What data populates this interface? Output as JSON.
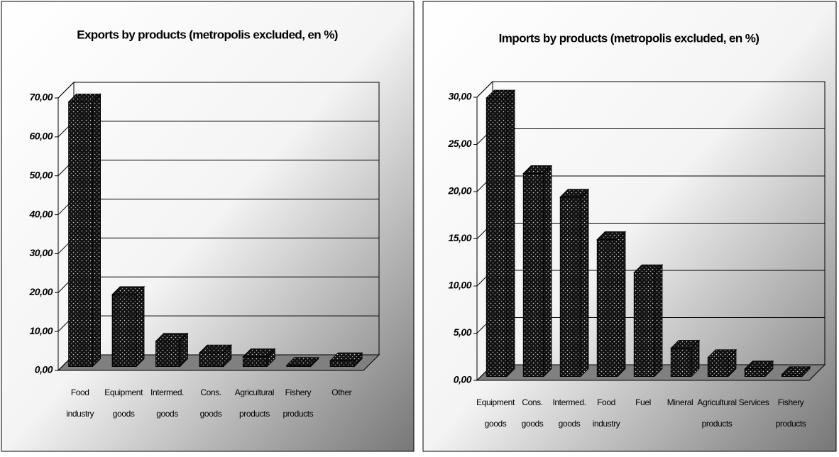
{
  "chart_data": [
    {
      "type": "bar",
      "title": "Exports by products (metropolis excluded, en %)",
      "categories": [
        "Food\nindustry",
        "Equipment\ngoods",
        "Intermed.\ngoods",
        "Cons.\ngoods",
        "Agricultural\nproducts",
        "Fishery\nproducts",
        "Other"
      ],
      "values": [
        68,
        18.5,
        6.5,
        3.5,
        2.5,
        0.3,
        1.5
      ],
      "color": "#000000",
      "ylim": [
        0,
        70
      ],
      "yticks": [
        {
          "value": 0,
          "label": "0,00"
        },
        {
          "value": 10,
          "label": "10,00"
        },
        {
          "value": 20,
          "label": "20,00"
        },
        {
          "value": 30,
          "label": "30,00"
        },
        {
          "value": 40,
          "label": "40,00"
        },
        {
          "value": 50,
          "label": "50,00"
        },
        {
          "value": 60,
          "label": "60,00"
        },
        {
          "value": 70,
          "label": "70,00"
        }
      ],
      "grid": true
    },
    {
      "type": "bar",
      "title": "Imports by products (metropolis excluded, en %)",
      "categories": [
        "Equipment\ngoods",
        "Cons.\ngoods",
        "Intermed.\ngoods",
        "Food\nindustry",
        "Fuel",
        "Mineral",
        "Agricultural\nproducts",
        "Services",
        "Fishery\nproducts"
      ],
      "values": [
        29.5,
        21.5,
        19,
        14.5,
        11,
        3,
        2,
        0.8,
        0.2
      ],
      "color": "#000000",
      "ylim": [
        0,
        30
      ],
      "yticks": [
        {
          "value": 0,
          "label": "0,00"
        },
        {
          "value": 5,
          "label": "5,00"
        },
        {
          "value": 10,
          "label": "10,00"
        },
        {
          "value": 15,
          "label": "15,00"
        },
        {
          "value": 20,
          "label": "20,00"
        },
        {
          "value": 25,
          "label": "25,00"
        },
        {
          "value": 30,
          "label": "30,00"
        }
      ],
      "grid": true
    }
  ]
}
